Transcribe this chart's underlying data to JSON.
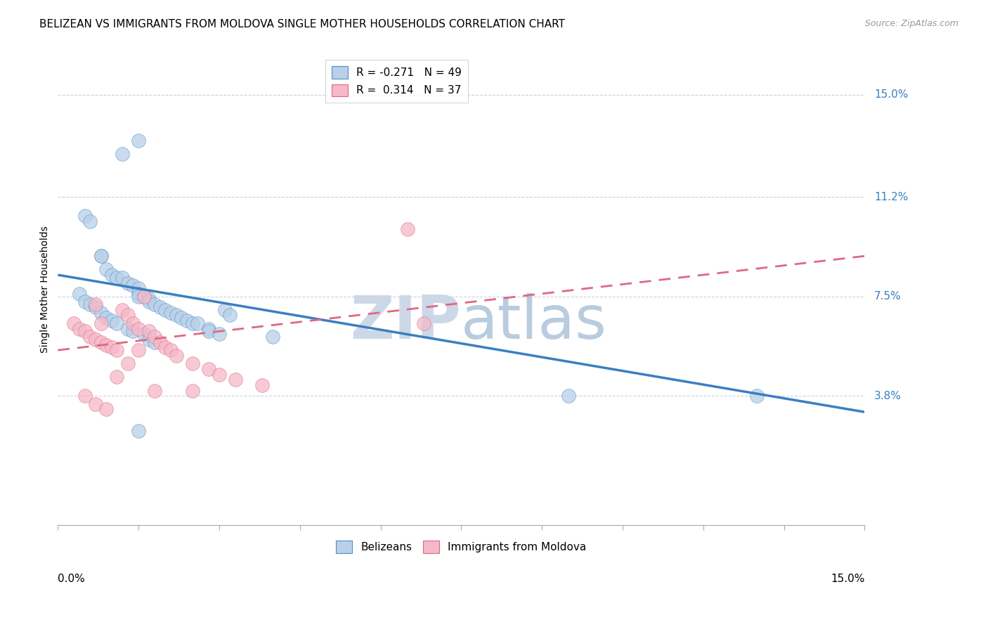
{
  "title": "BELIZEAN VS IMMIGRANTS FROM MOLDOVA SINGLE MOTHER HOUSEHOLDS CORRELATION CHART",
  "source": "Source: ZipAtlas.com",
  "ylabel": "Single Mother Households",
  "ytick_labels": [
    "15.0%",
    "11.2%",
    "7.5%",
    "3.8%"
  ],
  "ytick_values": [
    0.15,
    0.112,
    0.075,
    0.038
  ],
  "xtick_labels": [
    "0.0%",
    "15.0%"
  ],
  "xtick_values": [
    0.0,
    0.15
  ],
  "xlim": [
    0.0,
    0.15
  ],
  "ylim": [
    -0.01,
    0.165
  ],
  "legend_blue_r": "-0.271",
  "legend_blue_n": "49",
  "legend_pink_r": "0.314",
  "legend_pink_n": "37",
  "blue_fill_color": "#b8d0e8",
  "pink_fill_color": "#f5b8c8",
  "blue_edge_color": "#5090c8",
  "pink_edge_color": "#e06880",
  "blue_line_color": "#3a7fc1",
  "pink_line_color": "#e06880",
  "watermark_color": "#ccd8e8",
  "grid_color": "#c8d4e0",
  "background_color": "#ffffff",
  "blue_scatter_x": [
    0.012,
    0.015,
    0.005,
    0.006,
    0.008,
    0.008,
    0.009,
    0.01,
    0.011,
    0.012,
    0.013,
    0.014,
    0.015,
    0.015,
    0.015,
    0.016,
    0.017,
    0.017,
    0.018,
    0.019,
    0.02,
    0.021,
    0.022,
    0.023,
    0.024,
    0.025,
    0.026,
    0.028,
    0.028,
    0.03,
    0.031,
    0.032,
    0.004,
    0.005,
    0.006,
    0.007,
    0.008,
    0.009,
    0.01,
    0.011,
    0.013,
    0.014,
    0.016,
    0.017,
    0.018,
    0.04,
    0.015,
    0.095,
    0.13
  ],
  "blue_scatter_y": [
    0.128,
    0.133,
    0.105,
    0.103,
    0.09,
    0.09,
    0.085,
    0.083,
    0.082,
    0.082,
    0.08,
    0.079,
    0.078,
    0.076,
    0.075,
    0.075,
    0.074,
    0.073,
    0.072,
    0.071,
    0.07,
    0.069,
    0.068,
    0.067,
    0.066,
    0.065,
    0.065,
    0.063,
    0.062,
    0.061,
    0.07,
    0.068,
    0.076,
    0.073,
    0.072,
    0.071,
    0.069,
    0.067,
    0.066,
    0.065,
    0.063,
    0.062,
    0.061,
    0.059,
    0.058,
    0.06,
    0.025,
    0.038,
    0.038
  ],
  "pink_scatter_x": [
    0.003,
    0.004,
    0.005,
    0.006,
    0.007,
    0.007,
    0.008,
    0.008,
    0.009,
    0.01,
    0.011,
    0.012,
    0.013,
    0.014,
    0.015,
    0.016,
    0.017,
    0.018,
    0.019,
    0.02,
    0.021,
    0.022,
    0.025,
    0.028,
    0.03,
    0.033,
    0.038,
    0.005,
    0.007,
    0.009,
    0.011,
    0.013,
    0.015,
    0.018,
    0.065,
    0.068,
    0.025
  ],
  "pink_scatter_y": [
    0.065,
    0.063,
    0.062,
    0.06,
    0.059,
    0.072,
    0.058,
    0.065,
    0.057,
    0.056,
    0.055,
    0.07,
    0.068,
    0.065,
    0.063,
    0.075,
    0.062,
    0.06,
    0.058,
    0.056,
    0.055,
    0.053,
    0.05,
    0.048,
    0.046,
    0.044,
    0.042,
    0.038,
    0.035,
    0.033,
    0.045,
    0.05,
    0.055,
    0.04,
    0.1,
    0.065,
    0.04
  ],
  "blue_line_x": [
    0.0,
    0.15
  ],
  "blue_line_y": [
    0.083,
    0.032
  ],
  "pink_line_x": [
    0.0,
    0.15
  ],
  "pink_line_y": [
    0.055,
    0.09
  ],
  "title_fontsize": 11,
  "axis_label_fontsize": 10,
  "tick_fontsize": 11,
  "legend_fontsize": 11,
  "source_fontsize": 9
}
